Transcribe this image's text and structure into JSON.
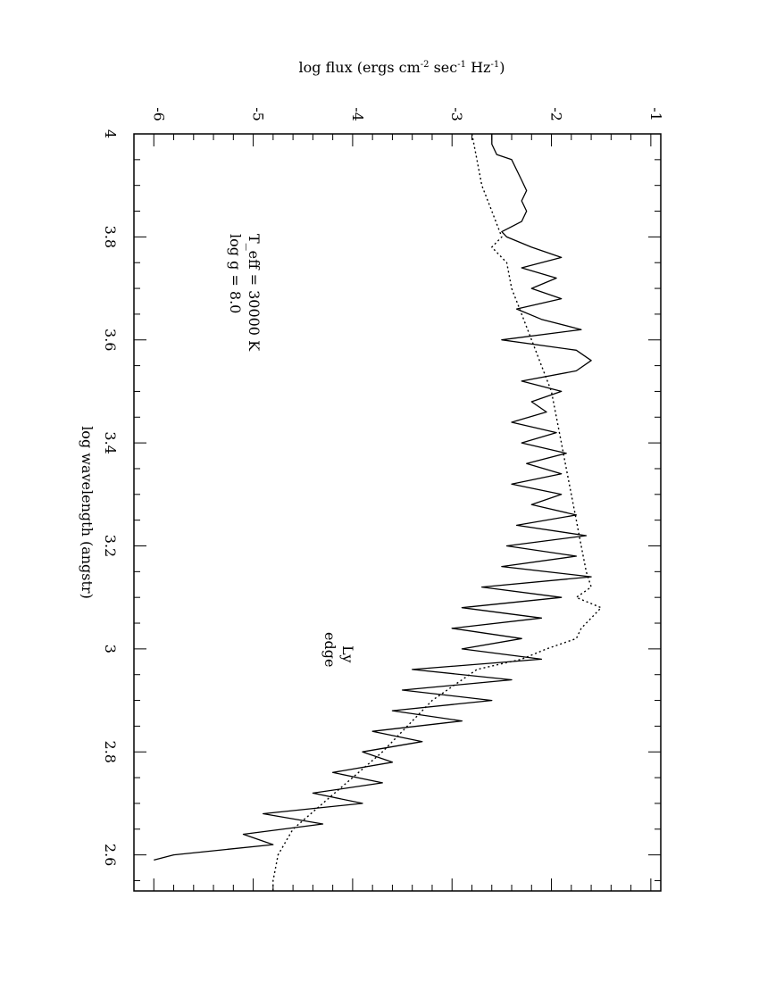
{
  "chart_data": {
    "type": "line",
    "orientation": "rotated 90 degrees clockwise (landscape plot printed on portrait page)",
    "xlabel": "log wavelength (angstr)",
    "ylabel_main": "log flux (ergs cm",
    "ylabel_sup1": "-2",
    "ylabel_mid1": " sec",
    "ylabel_sup2": "-1",
    "ylabel_mid2": " Hz",
    "ylabel_sup3": "-1",
    "ylabel_end": ")",
    "xlim": [
      4.0,
      2.53
    ],
    "ylim": [
      -6.2,
      -0.9
    ],
    "x_ticks": [
      4,
      3.8,
      3.6,
      3.4,
      3.2,
      3,
      2.8,
      2.6
    ],
    "x_tick_labels": [
      "4",
      "3.8",
      "3.6",
      "3.4",
      "3.2",
      "3",
      "2.8",
      "2.6"
    ],
    "y_ticks": [
      -6,
      -5,
      -4,
      -3,
      -2,
      -1
    ],
    "y_tick_labels": [
      "-6",
      "-5",
      "-4",
      "-3",
      "-2",
      "-1"
    ],
    "annotation_teff": "T_eff = 30000 K",
    "annotation_logg": "log g = 8.0",
    "ly_label_1": "Ly",
    "ly_label_2": "edge",
    "grid": false,
    "series": [
      {
        "style": "solid",
        "x": [
          4.0,
          3.98,
          3.96,
          3.95,
          3.93,
          3.91,
          3.89,
          3.87,
          3.85,
          3.83,
          3.81,
          3.8,
          3.78,
          3.76,
          3.74,
          3.72,
          3.7,
          3.68,
          3.66,
          3.64,
          3.62,
          3.6,
          3.58,
          3.56,
          3.54,
          3.52,
          3.5,
          3.48,
          3.46,
          3.44,
          3.42,
          3.4,
          3.38,
          3.36,
          3.34,
          3.32,
          3.3,
          3.28,
          3.26,
          3.24,
          3.22,
          3.2,
          3.18,
          3.16,
          3.14,
          3.12,
          3.1,
          3.08,
          3.06,
          3.04,
          3.02,
          3.0,
          2.98,
          2.96,
          2.94,
          2.92,
          2.9,
          2.88,
          2.86,
          2.84,
          2.82,
          2.8,
          2.78,
          2.76,
          2.74,
          2.72,
          2.7,
          2.68,
          2.66,
          2.64,
          2.62,
          2.6,
          2.59
        ],
        "y": [
          -2.6,
          -2.6,
          -2.55,
          -2.4,
          -2.35,
          -2.3,
          -2.25,
          -2.3,
          -2.25,
          -2.3,
          -2.5,
          -2.45,
          -2.2,
          -1.9,
          -2.3,
          -1.95,
          -2.2,
          -1.9,
          -2.35,
          -2.1,
          -1.7,
          -2.5,
          -1.75,
          -1.6,
          -1.75,
          -2.3,
          -1.9,
          -2.2,
          -2.05,
          -2.4,
          -1.95,
          -2.3,
          -1.85,
          -2.25,
          -1.9,
          -2.4,
          -1.9,
          -2.2,
          -1.75,
          -2.35,
          -1.65,
          -2.45,
          -1.75,
          -2.5,
          -1.6,
          -2.7,
          -1.9,
          -2.9,
          -2.1,
          -3.0,
          -2.3,
          -2.9,
          -2.1,
          -3.4,
          -2.4,
          -3.5,
          -2.6,
          -3.6,
          -2.9,
          -3.8,
          -3.3,
          -3.9,
          -3.6,
          -4.2,
          -3.7,
          -4.4,
          -3.9,
          -4.9,
          -4.3,
          -5.1,
          -4.8,
          -5.8,
          -6.0
        ]
      },
      {
        "style": "dotted",
        "x": [
          4.0,
          3.95,
          3.9,
          3.85,
          3.8,
          3.78,
          3.75,
          3.7,
          3.65,
          3.6,
          3.55,
          3.5,
          3.45,
          3.4,
          3.35,
          3.3,
          3.25,
          3.2,
          3.15,
          3.12,
          3.1,
          3.08,
          3.06,
          3.04,
          3.02,
          3.0,
          2.98,
          2.96,
          2.9,
          2.8,
          2.7,
          2.65,
          2.6,
          2.55,
          2.53
        ],
        "y": [
          -2.8,
          -2.75,
          -2.7,
          -2.6,
          -2.5,
          -2.6,
          -2.45,
          -2.4,
          -2.3,
          -2.2,
          -2.1,
          -2.0,
          -1.95,
          -1.9,
          -1.85,
          -1.8,
          -1.75,
          -1.7,
          -1.65,
          -1.6,
          -1.75,
          -1.5,
          -1.6,
          -1.7,
          -1.75,
          -2.05,
          -2.3,
          -2.75,
          -3.2,
          -3.7,
          -4.3,
          -4.6,
          -4.75,
          -4.8,
          -4.8
        ]
      }
    ]
  }
}
